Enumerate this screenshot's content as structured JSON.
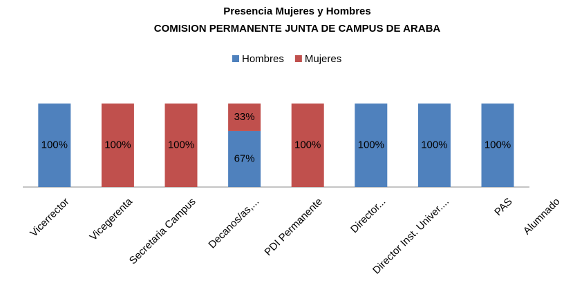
{
  "chart_data": {
    "type": "stacked_bar",
    "title": "Presencia Mujeres y Hombres",
    "subtitle": "COMISION PERMANENTE JUNTA DE CAMPUS DE ARABA",
    "categories": [
      "Vicerrector",
      "Vicegerenta",
      "Secretaria  Campus",
      "Decanos/as,...",
      "PDI Permanente",
      "Director...",
      "Director Inst. Univer....",
      "PAS",
      "Alumnado"
    ],
    "series": [
      {
        "name": "Hombres",
        "color": "#4f81bd",
        "values": [
          100,
          0,
          0,
          67,
          0,
          100,
          100,
          100,
          null
        ],
        "value_labels": [
          "100%",
          null,
          null,
          "67%",
          null,
          "100%",
          "100%",
          "100%",
          null
        ]
      },
      {
        "name": "Mujeres",
        "color": "#c0504d",
        "values": [
          0,
          100,
          100,
          33,
          100,
          0,
          0,
          0,
          null
        ],
        "value_labels": [
          null,
          "100%",
          "100%",
          "33%",
          "100%",
          null,
          null,
          null,
          null
        ]
      }
    ],
    "legend": "top"
  }
}
